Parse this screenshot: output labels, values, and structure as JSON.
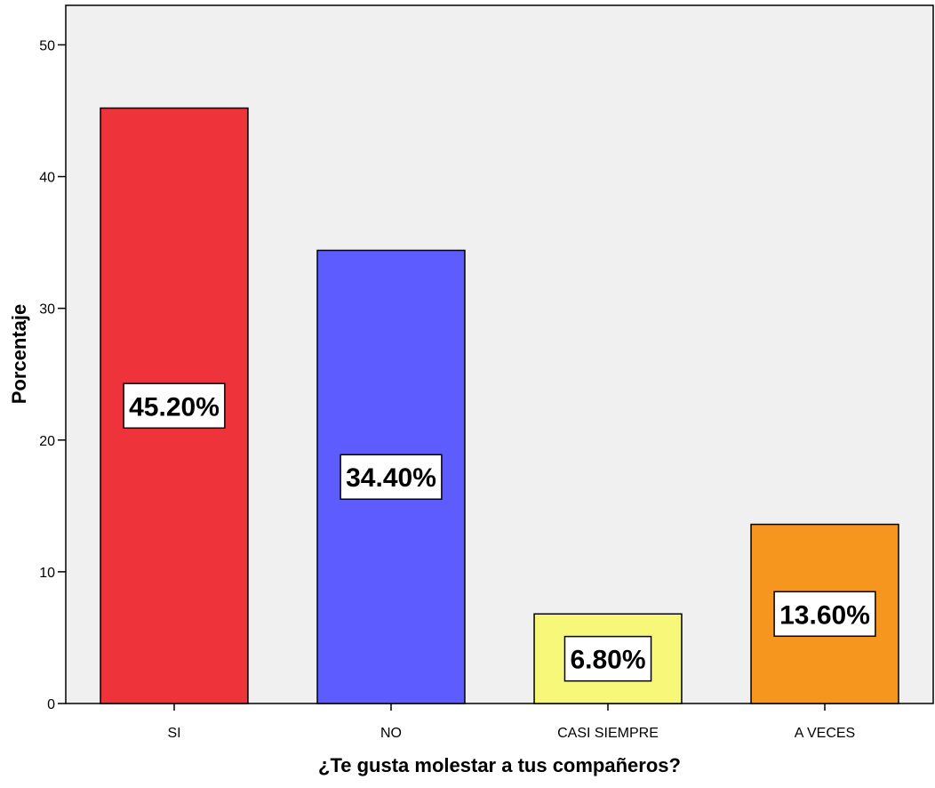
{
  "chart_data": {
    "type": "bar",
    "categories": [
      "SI",
      "NO",
      "CASI SIEMPRE",
      "A VECES"
    ],
    "values": [
      45.2,
      34.4,
      6.8,
      13.6
    ],
    "data_labels": [
      "45.20%",
      "34.40%",
      "6.80%",
      "13.60%"
    ],
    "colors": [
      "#ef333a",
      "#5c5cff",
      "#f7f779",
      "#f7961e"
    ],
    "plot_background": "#f0f0f0",
    "xlabel": "¿Te gusta molestar a tus compañeros?",
    "ylabel": "Porcentaje",
    "ylim": [
      0,
      53
    ],
    "yticks": [
      0,
      10,
      20,
      30,
      40,
      50
    ],
    "grid": false,
    "legend": "none"
  }
}
